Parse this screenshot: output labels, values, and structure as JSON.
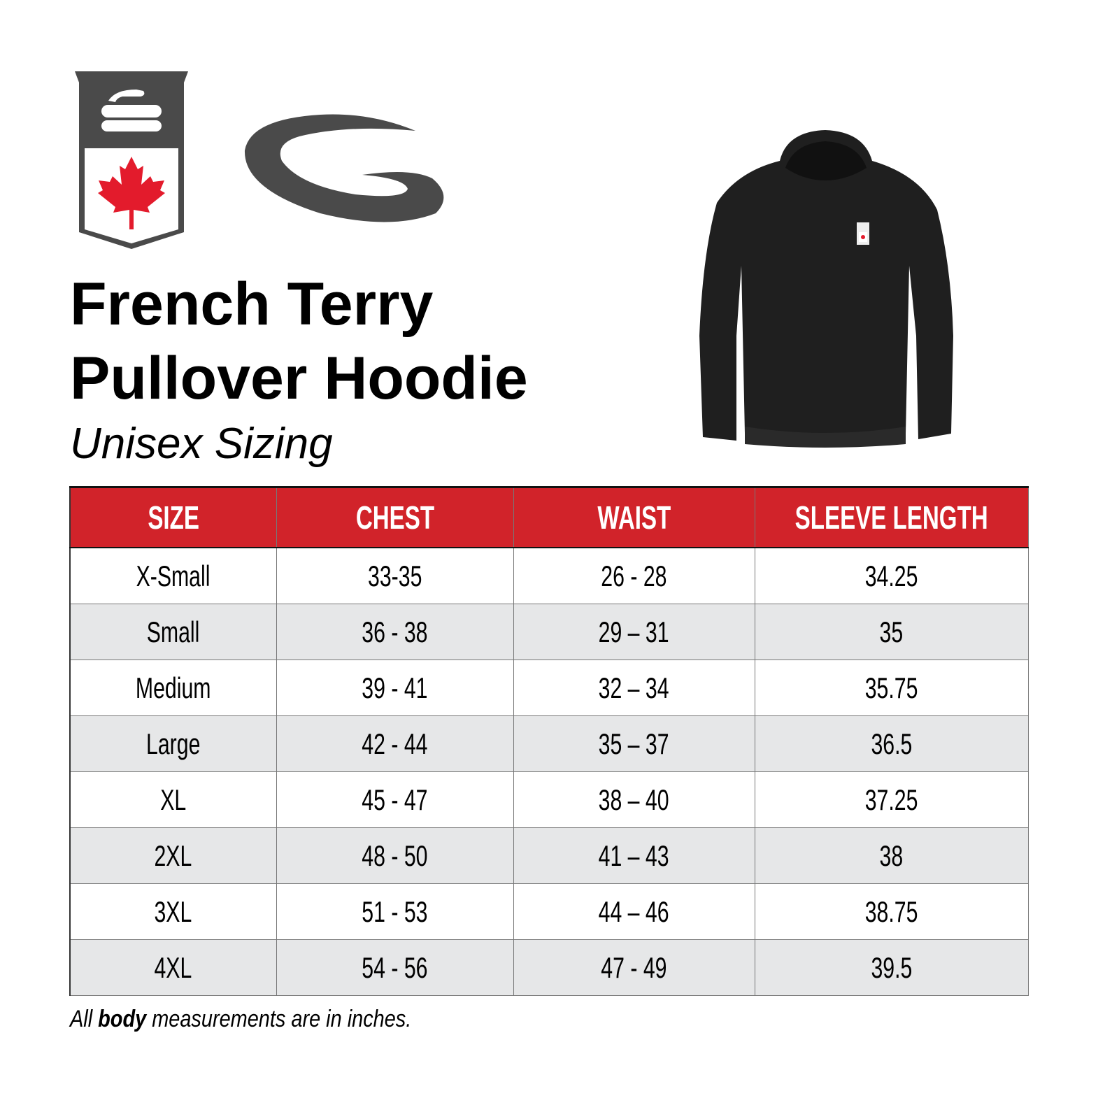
{
  "brand": {
    "logo_text": "Curling Canada shield logo",
    "swoosh": "Brand swoosh logo"
  },
  "product": {
    "title_line1": "French Terry",
    "title_line2": "Pullover Hoodie",
    "subtitle": "Unisex Sizing"
  },
  "colors": {
    "header_bg": "#d1232a",
    "alt_row": "#e6e7e8",
    "logo_gray": "#4a4a4a",
    "maple_red": "#e31b2c"
  },
  "table": {
    "headers": [
      "SIZE",
      "CHEST",
      "WAIST",
      "SLEEVE LENGTH"
    ],
    "rows": [
      [
        "X-Small",
        "33-35",
        "26 - 28",
        "34.25"
      ],
      [
        "Small",
        "36 - 38",
        "29 – 31",
        "35"
      ],
      [
        "Medium",
        "39 - 41",
        "32 – 34",
        "35.75"
      ],
      [
        "Large",
        "42 - 44",
        "35 – 37",
        "36.5"
      ],
      [
        "XL",
        "45 - 47",
        "38 – 40",
        "37.25"
      ],
      [
        "2XL",
        "48 - 50",
        "41 – 43",
        "38"
      ],
      [
        "3XL",
        "51 - 53",
        "44 – 46",
        "38.75"
      ],
      [
        "4XL",
        "54 - 56",
        "47 - 49",
        "39.5"
      ]
    ]
  },
  "footnote": {
    "pre": "All ",
    "bold": "body",
    "post": " measurements are in inches."
  }
}
